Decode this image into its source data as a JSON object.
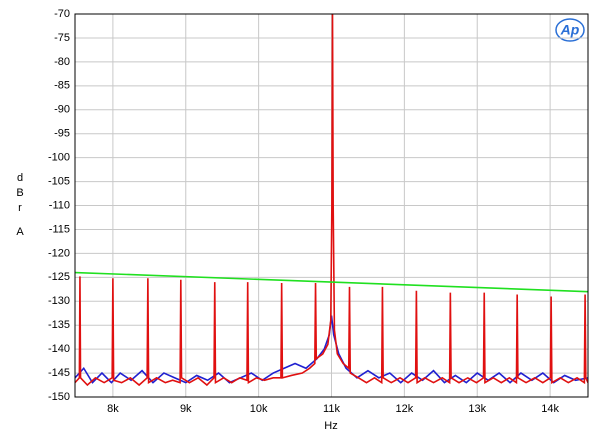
{
  "chart_data": {
    "type": "line",
    "logo": "Ap",
    "x_label": "Hz",
    "y_label": [
      "d",
      "B",
      "r",
      "A"
    ],
    "xlim": [
      7480,
      14520
    ],
    "ylim": [
      -150,
      -70
    ],
    "xticks": [
      {
        "value": 8000,
        "label": "8k"
      },
      {
        "value": 9000,
        "label": "9k"
      },
      {
        "value": 10000,
        "label": "10k"
      },
      {
        "value": 11000,
        "label": "11k"
      },
      {
        "value": 12000,
        "label": "12k"
      },
      {
        "value": 13000,
        "label": "13k"
      },
      {
        "value": 14000,
        "label": "14k"
      }
    ],
    "yticks": [
      -70,
      -75,
      -80,
      -85,
      -90,
      -95,
      -100,
      -105,
      -110,
      -115,
      -120,
      -125,
      -130,
      -135,
      -140,
      -145,
      -150
    ],
    "grid": true,
    "series": [
      {
        "color": "#2020d0",
        "x": [
          7480,
          7600,
          7720,
          7850,
          7980,
          8100,
          8250,
          8400,
          8550,
          8700,
          8850,
          9000,
          9150,
          9300,
          9450,
          9600,
          9750,
          9900,
          10050,
          10200,
          10350,
          10500,
          10650,
          10800,
          10900,
          10970,
          11000,
          11030,
          11100,
          11200,
          11350,
          11500,
          11650,
          11800,
          11950,
          12100,
          12250,
          12400,
          12550,
          12700,
          12850,
          13000,
          13150,
          13300,
          13450,
          13600,
          13750,
          13900,
          14050,
          14200,
          14350,
          14520
        ],
        "values": [
          -146,
          -144,
          -147,
          -145,
          -147,
          -145,
          -146.5,
          -144.5,
          -147,
          -145,
          -146,
          -147,
          -145.5,
          -146.5,
          -145,
          -147,
          -146,
          -145,
          -146.5,
          -145,
          -144,
          -143,
          -144,
          -142,
          -140,
          -137,
          -133,
          -137,
          -141,
          -144,
          -146,
          -144.5,
          -146,
          -145,
          -147,
          -145,
          -146.5,
          -144.5,
          -147,
          -145.5,
          -147,
          -145,
          -146.5,
          -145,
          -147,
          -145,
          -146.5,
          -145,
          -147,
          -145.5,
          -146.5,
          -146
        ]
      },
      {
        "color": "#e01010",
        "x": [
          7480,
          7540,
          7548,
          7556,
          7650,
          7760,
          7880,
          7990,
          8000,
          8010,
          8120,
          8240,
          8360,
          8470,
          8480,
          8490,
          8600,
          8720,
          8820,
          8922,
          8932,
          8942,
          9050,
          9170,
          9290,
          9388,
          9398,
          9408,
          9520,
          9630,
          9740,
          9840,
          9850,
          9860,
          9970,
          10080,
          10200,
          10306,
          10316,
          10326,
          10450,
          10600,
          10700,
          10771,
          10781,
          10791,
          10880,
          10950,
          10990,
          11005,
          11014,
          11023,
          11040,
          11080,
          11160,
          11237,
          11247,
          11257,
          11370,
          11480,
          11590,
          11689,
          11699,
          11709,
          11820,
          11940,
          12050,
          12155,
          12165,
          12175,
          12280,
          12400,
          12520,
          12621,
          12631,
          12641,
          12750,
          12870,
          12990,
          13086,
          13096,
          13106,
          13220,
          13330,
          13440,
          13538,
          13548,
          13558,
          13670,
          13790,
          13900,
          14004,
          14014,
          14024,
          14140,
          14250,
          14370,
          14470,
          14480,
          14490,
          14520
        ],
        "values": [
          -147,
          -146,
          -124.8,
          -146,
          -147.5,
          -146,
          -147,
          -146,
          -125.2,
          -146.5,
          -147,
          -146,
          -147.5,
          -146,
          -125.2,
          -147,
          -146,
          -147,
          -146.5,
          -147,
          -125.5,
          -146,
          -147,
          -146,
          -147.5,
          -146,
          -126,
          -147,
          -146,
          -147,
          -146,
          -146.5,
          -126,
          -147,
          -146,
          -146.5,
          -146,
          -146,
          -126.2,
          -146,
          -145.5,
          -145,
          -144,
          -143,
          -126.2,
          -142,
          -141,
          -139,
          -134,
          -110,
          -70,
          -110,
          -136,
          -141,
          -143,
          -144,
          -127,
          -145,
          -146,
          -147,
          -146,
          -147,
          -127,
          -146,
          -147,
          -146,
          -147,
          -146,
          -127.8,
          -147,
          -146,
          -147,
          -146,
          -147,
          -128.2,
          -146,
          -147,
          -146,
          -147,
          -146,
          -128.2,
          -147,
          -146,
          -147,
          -146,
          -147,
          -128.6,
          -146,
          -147,
          -146,
          -147,
          -146,
          -129,
          -147,
          -146,
          -147,
          -146,
          -147,
          -128.6,
          -146,
          -147
        ]
      },
      {
        "color": "#20e020",
        "x": [
          7480,
          14520
        ],
        "values": [
          -124,
          -128
        ]
      }
    ]
  }
}
